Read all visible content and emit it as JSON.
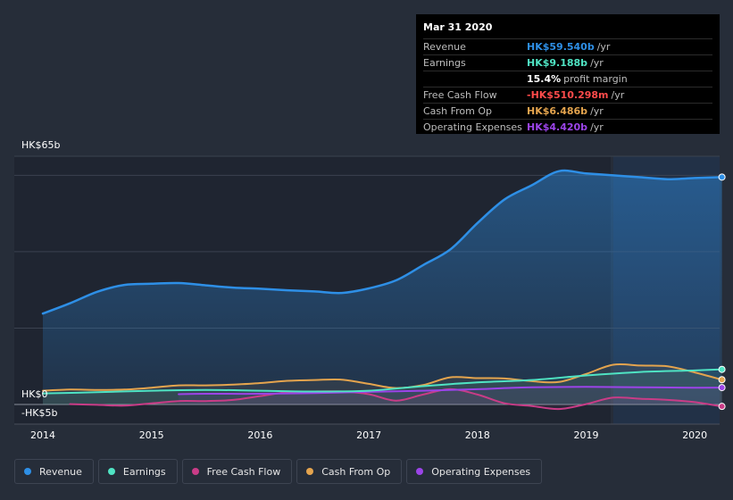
{
  "chart_data": {
    "type": "line",
    "x_domain": [
      2013.78,
      2020.25
    ],
    "y_domain": [
      -5,
      65
    ],
    "y_labels": [
      {
        "value": 65,
        "text": "HK$65b"
      },
      {
        "value": 0,
        "text": "HK$0"
      },
      {
        "value": -5,
        "text": "-HK$5b"
      }
    ],
    "gridlines": [
      65,
      60,
      40,
      20,
      0
    ],
    "x_ticks": [
      {
        "value": 2014,
        "text": "2014"
      },
      {
        "value": 2015,
        "text": "2015"
      },
      {
        "value": 2016,
        "text": "2016"
      },
      {
        "value": 2017,
        "text": "2017"
      },
      {
        "value": 2018,
        "text": "2018"
      },
      {
        "value": 2019,
        "text": "2019"
      },
      {
        "value": 2020,
        "text": "2020"
      }
    ],
    "forecast_start": 2019.25,
    "series": [
      {
        "name": "Revenue",
        "color": "#2e8fe6",
        "fill": true,
        "points": [
          [
            2014.0,
            23.8
          ],
          [
            2014.25,
            26.5
          ],
          [
            2014.5,
            29.5
          ],
          [
            2014.75,
            31.3
          ],
          [
            2015.0,
            31.6
          ],
          [
            2015.25,
            31.8
          ],
          [
            2015.5,
            31.2
          ],
          [
            2015.75,
            30.6
          ],
          [
            2016.0,
            30.3
          ],
          [
            2016.25,
            29.9
          ],
          [
            2016.5,
            29.6
          ],
          [
            2016.75,
            29.2
          ],
          [
            2017.0,
            30.4
          ],
          [
            2017.25,
            32.5
          ],
          [
            2017.5,
            36.5
          ],
          [
            2017.75,
            40.6
          ],
          [
            2018.0,
            47.5
          ],
          [
            2018.25,
            53.7
          ],
          [
            2018.5,
            57.4
          ],
          [
            2018.75,
            61.1
          ],
          [
            2019.0,
            60.5
          ],
          [
            2019.25,
            60.0
          ],
          [
            2019.5,
            59.5
          ],
          [
            2019.75,
            59.0
          ],
          [
            2020.0,
            59.3
          ],
          [
            2020.25,
            59.54
          ]
        ]
      },
      {
        "name": "Earnings",
        "color": "#4fe3c3",
        "fill": false,
        "points": [
          [
            2014.0,
            2.9
          ],
          [
            2014.5,
            3.2
          ],
          [
            2015.0,
            3.6
          ],
          [
            2015.5,
            3.8
          ],
          [
            2016.0,
            3.6
          ],
          [
            2016.5,
            3.4
          ],
          [
            2017.0,
            3.6
          ],
          [
            2017.5,
            4.8
          ],
          [
            2018.0,
            5.8
          ],
          [
            2018.5,
            6.4
          ],
          [
            2019.0,
            7.6
          ],
          [
            2019.5,
            8.5
          ],
          [
            2020.0,
            8.9
          ],
          [
            2020.25,
            9.188
          ]
        ]
      },
      {
        "name": "Free Cash Flow",
        "color": "#c93c87",
        "fill": false,
        "points": [
          [
            2014.25,
            0.1
          ],
          [
            2014.5,
            -0.1
          ],
          [
            2014.75,
            -0.3
          ],
          [
            2015.0,
            0.3
          ],
          [
            2015.25,
            0.9
          ],
          [
            2015.5,
            0.9
          ],
          [
            2015.75,
            1.2
          ],
          [
            2016.0,
            2.2
          ],
          [
            2016.25,
            3.2
          ],
          [
            2016.5,
            3.4
          ],
          [
            2016.75,
            3.4
          ],
          [
            2017.0,
            2.7
          ],
          [
            2017.25,
            1.0
          ],
          [
            2017.5,
            2.6
          ],
          [
            2017.75,
            4.0
          ],
          [
            2018.0,
            2.6
          ],
          [
            2018.25,
            0.3
          ],
          [
            2018.5,
            -0.4
          ],
          [
            2018.75,
            -1.2
          ],
          [
            2019.0,
            0.1
          ],
          [
            2019.25,
            1.8
          ],
          [
            2019.5,
            1.5
          ],
          [
            2019.75,
            1.2
          ],
          [
            2020.0,
            0.6
          ],
          [
            2020.25,
            -0.51
          ]
        ]
      },
      {
        "name": "Cash From Op",
        "color": "#e4a44e",
        "fill": false,
        "points": [
          [
            2014.0,
            3.6
          ],
          [
            2014.25,
            3.9
          ],
          [
            2014.5,
            3.8
          ],
          [
            2014.75,
            3.9
          ],
          [
            2015.0,
            4.4
          ],
          [
            2015.25,
            5.0
          ],
          [
            2015.5,
            5.0
          ],
          [
            2015.75,
            5.2
          ],
          [
            2016.0,
            5.6
          ],
          [
            2016.25,
            6.2
          ],
          [
            2016.5,
            6.4
          ],
          [
            2016.75,
            6.5
          ],
          [
            2017.0,
            5.4
          ],
          [
            2017.25,
            4.3
          ],
          [
            2017.5,
            5.1
          ],
          [
            2017.75,
            7.1
          ],
          [
            2018.0,
            6.9
          ],
          [
            2018.25,
            6.8
          ],
          [
            2018.5,
            6.1
          ],
          [
            2018.75,
            5.9
          ],
          [
            2019.0,
            8.0
          ],
          [
            2019.25,
            10.4
          ],
          [
            2019.5,
            10.2
          ],
          [
            2019.75,
            10.0
          ],
          [
            2020.0,
            8.4
          ],
          [
            2020.25,
            6.486
          ]
        ]
      },
      {
        "name": "Operating Expenses",
        "color": "#9b44e8",
        "fill": false,
        "points": [
          [
            2015.25,
            2.7
          ],
          [
            2015.5,
            2.8
          ],
          [
            2016.0,
            2.8
          ],
          [
            2016.5,
            3.0
          ],
          [
            2017.0,
            3.3
          ],
          [
            2017.5,
            3.6
          ],
          [
            2018.0,
            4.0
          ],
          [
            2018.25,
            4.3
          ],
          [
            2018.5,
            4.5
          ],
          [
            2019.0,
            4.6
          ],
          [
            2019.5,
            4.5
          ],
          [
            2020.0,
            4.4
          ],
          [
            2020.25,
            4.42
          ]
        ]
      }
    ]
  },
  "tooltip": {
    "date": "Mar 31 2020",
    "rows": [
      {
        "label": "Revenue",
        "value": "HK$59.540b",
        "unit": "/yr",
        "color": "#2e8fe6"
      },
      {
        "label": "Earnings",
        "value": "HK$9.188b",
        "unit": "/yr",
        "color": "#4fe3c3"
      },
      {
        "label": "",
        "value": "15.4%",
        "unit": "profit margin",
        "color": "#ffffff"
      },
      {
        "label": "Free Cash Flow",
        "value": "-HK$510.298m",
        "unit": "/yr",
        "color": "#ff4b4b"
      },
      {
        "label": "Cash From Op",
        "value": "HK$6.486b",
        "unit": "/yr",
        "color": "#e4a44e"
      },
      {
        "label": "Operating Expenses",
        "value": "HK$4.420b",
        "unit": "/yr",
        "color": "#9b44e8"
      }
    ]
  },
  "legend": [
    {
      "label": "Revenue",
      "color": "#2e8fe6"
    },
    {
      "label": "Earnings",
      "color": "#4fe3c3"
    },
    {
      "label": "Free Cash Flow",
      "color": "#c93c87"
    },
    {
      "label": "Cash From Op",
      "color": "#e4a44e"
    },
    {
      "label": "Operating Expenses",
      "color": "#9b44e8"
    }
  ]
}
